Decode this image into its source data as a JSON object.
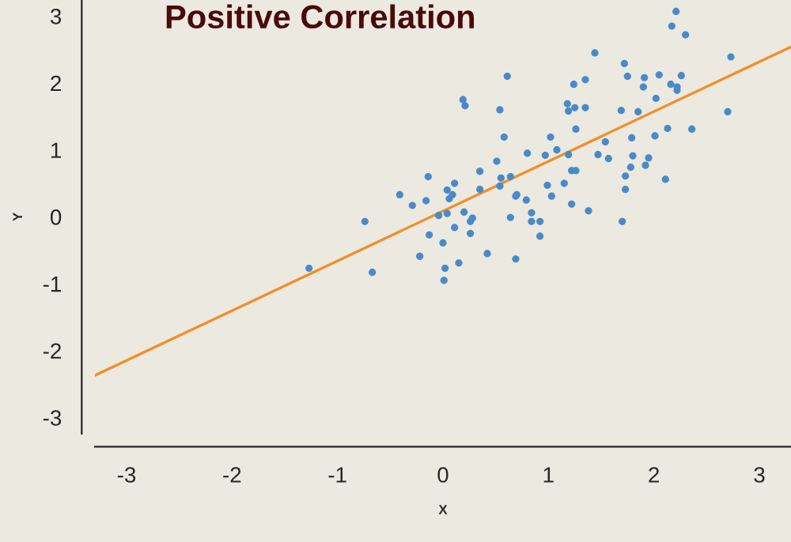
{
  "chart_data": {
    "type": "scatter",
    "title": "Positive Correlation",
    "xlabel": "X",
    "ylabel": "Y",
    "xlim": [
      -3.3,
      3.3
    ],
    "ylim": [
      -3.24,
      3.24
    ],
    "xticks": [
      -3,
      -2,
      -1,
      0,
      1,
      2,
      3
    ],
    "yticks": [
      -3,
      -2,
      -1,
      0,
      1,
      2,
      3
    ],
    "grid": false,
    "legend": false,
    "series": [
      {
        "marker": "circle",
        "color": "#4a8ac8",
        "x": [
          -1.27,
          -0.74,
          -0.67,
          -0.41,
          -0.29,
          -0.22,
          -0.16,
          -0.14,
          -0.13,
          -0.04,
          0.0,
          0.02,
          0.01,
          0.04,
          0.06,
          0.04,
          0.09,
          0.11,
          0.11,
          0.15,
          0.19,
          0.21,
          0.2,
          0.26,
          0.28,
          0.26,
          0.35,
          0.35,
          0.42,
          0.51,
          0.54,
          0.55,
          0.54,
          0.58,
          0.61,
          0.64,
          0.64,
          0.69,
          0.7,
          0.69,
          0.79,
          0.8,
          0.84,
          0.84,
          0.92,
          0.92,
          0.97,
          0.99,
          1.02,
          1.03,
          1.08,
          1.15,
          1.18,
          1.19,
          1.19,
          1.22,
          1.22,
          1.24,
          1.25,
          1.26,
          1.26,
          1.35,
          1.35,
          1.38,
          1.44,
          1.47,
          1.54,
          1.57,
          1.69,
          1.7,
          1.72,
          1.73,
          1.73,
          1.75,
          1.78,
          1.79,
          1.8,
          1.85,
          1.9,
          1.91,
          1.92,
          1.95,
          2.01,
          2.02,
          2.05,
          2.11,
          2.13,
          2.16,
          2.17,
          2.21,
          2.22,
          2.22,
          2.26,
          2.3,
          2.36,
          2.7,
          2.73
        ],
        "values": [
          -0.77,
          -0.07,
          -0.83,
          0.33,
          0.17,
          -0.59,
          0.24,
          0.6,
          -0.27,
          0.02,
          -0.39,
          -0.77,
          -0.95,
          0.4,
          0.27,
          0.05,
          0.33,
          0.5,
          -0.16,
          -0.69,
          1.75,
          1.66,
          0.07,
          -0.07,
          -0.02,
          -0.25,
          0.68,
          0.41,
          -0.55,
          0.83,
          1.6,
          0.58,
          0.46,
          1.19,
          2.1,
          0.6,
          -0.01,
          0.31,
          0.33,
          -0.63,
          0.25,
          0.95,
          0.06,
          -0.07,
          -0.07,
          -0.29,
          0.92,
          0.47,
          1.19,
          0.31,
          1.0,
          0.5,
          1.69,
          1.58,
          0.93,
          0.19,
          0.69,
          1.98,
          1.63,
          0.69,
          1.31,
          2.05,
          1.63,
          0.09,
          2.45,
          0.93,
          1.12,
          0.87,
          1.59,
          -0.07,
          2.29,
          0.61,
          0.41,
          2.1,
          0.74,
          1.18,
          0.91,
          1.57,
          1.94,
          2.08,
          0.77,
          0.88,
          1.21,
          1.77,
          2.12,
          0.56,
          1.32,
          1.98,
          2.85,
          3.07,
          1.94,
          1.89,
          2.11,
          2.72,
          1.31,
          1.57,
          2.39
        ]
      },
      {
        "type": "line",
        "color": "#f0902a",
        "x": [
          -3.3,
          3.3
        ],
        "values": [
          -2.37,
          2.54
        ],
        "line_style": "solid"
      }
    ]
  }
}
